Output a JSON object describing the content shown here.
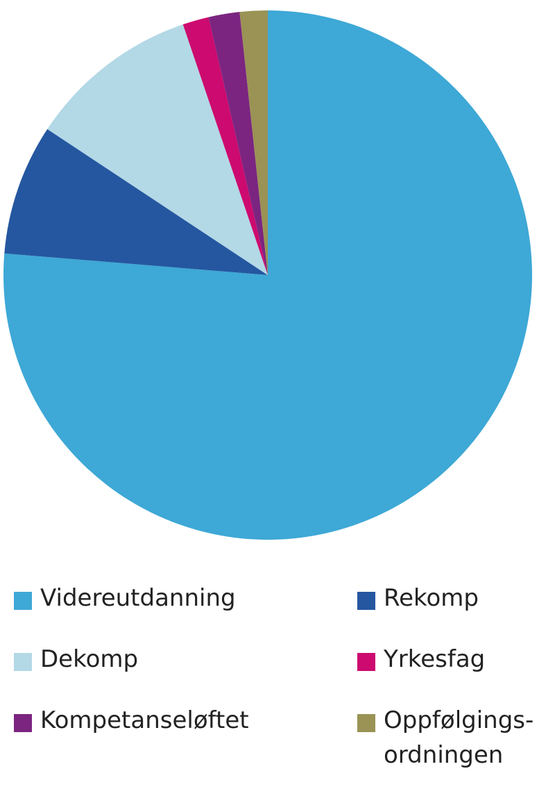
{
  "chart_data": {
    "type": "pie",
    "categories": [
      "Videreutdanning",
      "Rekomp",
      "Dekomp",
      "Yrkesfag",
      "Kompetanseløftet",
      "Oppfølgings-ordningen"
    ],
    "values": [
      76.3,
      8,
      10.5,
      1.6,
      1.9,
      1.7
    ],
    "colors": [
      "#3ea8d6",
      "#2557a0",
      "#b3d8e6",
      "#cc0a6f",
      "#7b2580",
      "#9a9355"
    ],
    "start": "top",
    "direction": "clockwise",
    "legend": "bottom"
  }
}
